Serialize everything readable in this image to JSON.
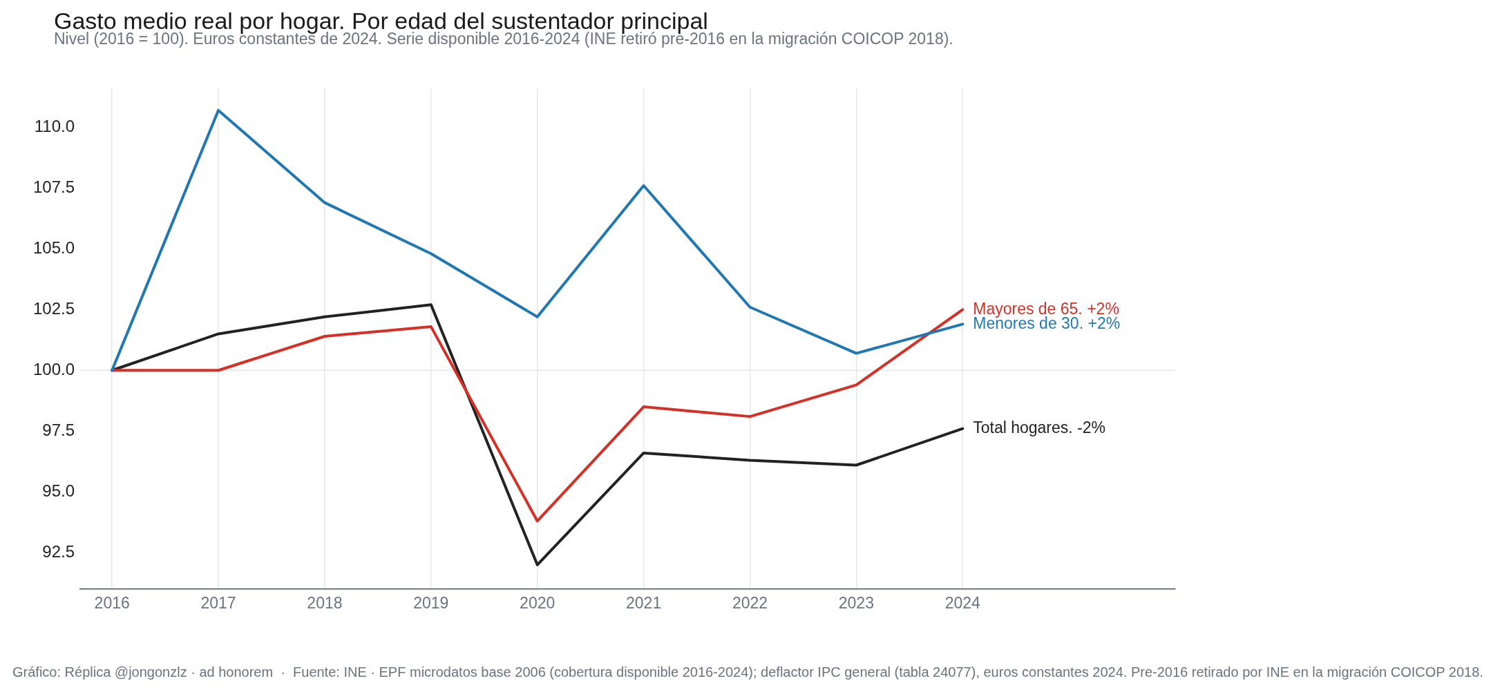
{
  "chart_data": {
    "type": "line",
    "title": "Gasto medio real por hogar. Por edad del sustentador principal",
    "subtitle": "Nivel (2016 = 100). Euros constantes de 2024. Serie disponible 2016-2024 (INE retiró pre-2016 en la migración COICOP 2018).",
    "annotations": [
      "Gráfico: Réplica @jongonzlz · ad honorem  ·  Fuente: INE · EPF microdatos base 2006 (cobertura disponible 2016-2024); deflactor IPC general (tabla 24077), euros constantes 2024. Pre-2016 retirado por INE en la migración COICOP 2018."
    ],
    "x": [
      2016,
      2017,
      2018,
      2019,
      2020,
      2021,
      2022,
      2023,
      2024
    ],
    "series": [
      {
        "name": "Total hogares. -2%",
        "color": "#222222",
        "values": [
          100,
          101.5,
          102.2,
          102.7,
          92.0,
          96.6,
          96.3,
          96.1,
          97.6
        ]
      },
      {
        "name": "Mayores de 65. +2%",
        "color": "#d62f26",
        "values": [
          100,
          100.0,
          101.4,
          101.8,
          93.8,
          98.5,
          98.1,
          99.4,
          102.5
        ]
      },
      {
        "name": "Menores de 30. +2%",
        "color": "#1f77b4",
        "values": [
          100,
          110.7,
          106.9,
          104.8,
          102.2,
          107.6,
          102.6,
          100.7,
          101.9
        ]
      }
    ],
    "xlim": [
      2015.7,
      2026
    ],
    "xticks": [
      2016,
      2017,
      2018,
      2019,
      2020,
      2021,
      2022,
      2023,
      2024
    ],
    "ylim": [
      91.0,
      111.6
    ],
    "yticks": [
      92.5,
      {
        "value": 95,
        "label": "95.0"
      },
      97.5,
      {
        "value": 100,
        "label": "100.0"
      },
      102.5,
      {
        "value": 105,
        "label": "105.0"
      },
      107.5,
      {
        "value": 110,
        "label": "110.0"
      }
    ],
    "ref_lines": [
      {
        "axis": "y",
        "value": 100,
        "color": "#e5e7eb"
      }
    ],
    "grid": "x",
    "legend": false,
    "marker": "none",
    "line_style": "solid"
  }
}
